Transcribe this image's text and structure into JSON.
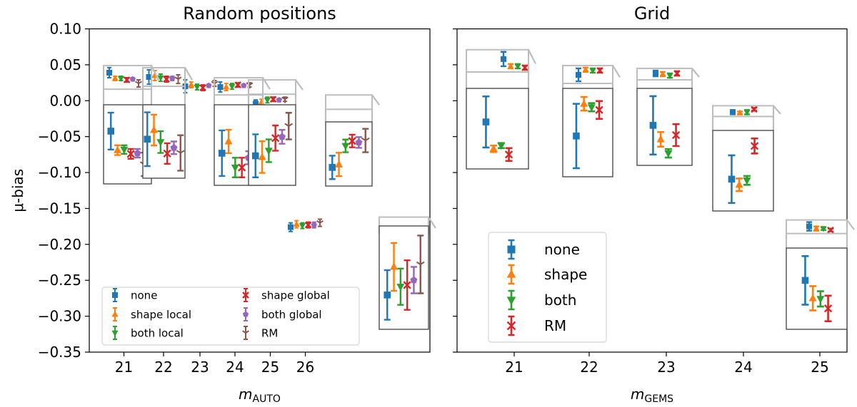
{
  "chart_data": [
    {
      "type": "errorbar",
      "title": "Random positions",
      "ylabel": "μ-bias",
      "xlabel": "m",
      "xlabel_sub": "AUTO",
      "ylim": [
        -0.35,
        0.1
      ],
      "yticks": [
        "0.10",
        "0.05",
        "0.00",
        "−0.05",
        "−0.10",
        "−0.15",
        "−0.20",
        "−0.25",
        "−0.30",
        "−0.35"
      ],
      "ytick_values": [
        0.1,
        0.05,
        0.0,
        -0.05,
        -0.1,
        -0.15,
        -0.2,
        -0.25,
        -0.3,
        -0.35
      ],
      "categories": [
        "21",
        "22",
        "23",
        "24",
        "25",
        "26"
      ],
      "legend_location": "lower-left",
      "series": [
        {
          "name": "none",
          "color": "#1f77b4",
          "marker": "square",
          "values": [
            0.039,
            0.033,
            0.02,
            0.019,
            -0.004,
            -0.176
          ],
          "errors": [
            0.007,
            0.01,
            0.009,
            0.007,
            0.005,
            0.006
          ]
        },
        {
          "name": "shape local",
          "color": "#ff7f0e",
          "marker": "triangle-up",
          "values": [
            0.031,
            0.035,
            0.022,
            0.019,
            -0.002,
            -0.172
          ],
          "errors": [
            0.003,
            0.007,
            0.004,
            0.005,
            0.004,
            0.005
          ]
        },
        {
          "name": "both local",
          "color": "#2ca02c",
          "marker": "triangle-down",
          "values": [
            0.031,
            0.032,
            0.019,
            0.02,
            0.001,
            -0.174
          ],
          "errors": [
            0.003,
            0.005,
            0.004,
            0.004,
            0.004,
            0.004
          ]
        },
        {
          "name": "shape global",
          "color": "#d62728",
          "marker": "x",
          "values": [
            0.029,
            0.03,
            0.018,
            0.022,
            0.002,
            -0.173
          ],
          "errors": [
            0.003,
            0.004,
            0.004,
            0.003,
            0.003,
            0.004
          ]
        },
        {
          "name": "both global",
          "color": "#9467bd",
          "marker": "pentagon",
          "values": [
            0.03,
            0.031,
            0.021,
            0.021,
            0.001,
            -0.173
          ],
          "errors": [
            0.002,
            0.003,
            0.002,
            0.002,
            0.002,
            0.004
          ]
        },
        {
          "name": "RM",
          "color": "#8c564b",
          "marker": "tri-down",
          "values": [
            0.024,
            0.03,
            0.024,
            0.022,
            0.002,
            -0.17
          ],
          "errors": [
            0.005,
            0.006,
            0.004,
            0.003,
            0.003,
            0.005
          ]
        }
      ],
      "insets": [
        {
          "category": "21",
          "values": [
            -0.039,
            -0.07,
            -0.069,
            -0.076,
            -0.075,
            -0.093
          ],
          "errors": [
            0.03,
            0.008,
            0.007,
            0.008,
            0.007,
            0.019
          ]
        },
        {
          "category": "22",
          "values": [
            -0.048,
            -0.032,
            -0.053,
            -0.073,
            -0.063,
            -0.072
          ],
          "errors": [
            0.047,
            0.027,
            0.019,
            0.018,
            0.011,
            0.031
          ]
        },
        {
          "category": "23",
          "values": [
            -0.073,
            -0.055,
            -0.095,
            -0.095,
            -0.08,
            -0.035
          ],
          "errors": [
            0.035,
            0.018,
            0.015,
            0.015,
            0.01,
            0.024
          ]
        },
        {
          "category": "24",
          "values": [
            -0.081,
            -0.083,
            -0.073,
            -0.053,
            -0.051,
            -0.034
          ],
          "errors": [
            0.034,
            0.025,
            0.018,
            0.02,
            0.011,
            0.021
          ]
        },
        {
          "category": "25",
          "values": [
            -0.114,
            -0.108,
            -0.07,
            -0.06,
            -0.063,
            -0.059
          ],
          "errors": [
            0.024,
            0.024,
            0.013,
            0.013,
            0.011,
            0.024
          ]
        },
        {
          "category": "26",
          "values": [
            -0.282,
            -0.248,
            -0.272,
            -0.27,
            -0.264,
            -0.245
          ],
          "errors": [
            0.03,
            0.029,
            0.022,
            0.03,
            0.016,
            0.035
          ]
        }
      ]
    },
    {
      "type": "errorbar",
      "title": "Grid",
      "xlabel": "m",
      "xlabel_sub": "GEMS",
      "ylim": [
        -0.35,
        0.1
      ],
      "categories": [
        "21",
        "22",
        "23",
        "24",
        "25"
      ],
      "legend_location": "lower-left",
      "series": [
        {
          "name": "none",
          "color": "#1f77b4",
          "marker": "square",
          "values": [
            0.058,
            0.036,
            0.038,
            -0.016,
            -0.175
          ],
          "errors": [
            0.01,
            0.009,
            0.004,
            0.003,
            0.006
          ]
        },
        {
          "name": "shape",
          "color": "#ff7f0e",
          "marker": "triangle-up",
          "values": [
            0.048,
            0.043,
            0.037,
            -0.017,
            -0.178
          ],
          "errors": [
            0.003,
            0.003,
            0.003,
            0.002,
            0.003
          ]
        },
        {
          "name": "both",
          "color": "#2ca02c",
          "marker": "triangle-down",
          "values": [
            0.048,
            0.042,
            0.035,
            -0.016,
            -0.178
          ],
          "errors": [
            0.003,
            0.003,
            0.003,
            0.003,
            0.002
          ]
        },
        {
          "name": "RM",
          "color": "#d62728",
          "marker": "x",
          "values": [
            0.046,
            0.042,
            0.038,
            -0.012,
            -0.18
          ],
          "errors": [
            0.003,
            0.003,
            0.003,
            0.002,
            0.002
          ]
        }
      ],
      "insets": [
        {
          "category": "21",
          "values": [
            -0.027,
            -0.069,
            -0.064,
            -0.078
          ],
          "errors": [
            0.04,
            0.005,
            0.004,
            0.01
          ]
        },
        {
          "category": "22",
          "values": [
            -0.055,
            -0.008,
            -0.013,
            -0.017
          ],
          "errors": [
            0.047,
            0.01,
            0.006,
            0.013
          ]
        },
        {
          "category": "23",
          "values": [
            -0.042,
            -0.065,
            -0.088,
            -0.058
          ],
          "errors": [
            0.048,
            0.012,
            0.007,
            0.018
          ]
        },
        {
          "category": "24",
          "values": [
            -0.113,
            -0.122,
            -0.115,
            -0.06
          ],
          "errors": [
            0.038,
            0.01,
            0.007,
            0.012
          ]
        },
        {
          "category": "25",
          "values": [
            -0.25,
            -0.278,
            -0.279,
            -0.294
          ],
          "errors": [
            0.038,
            0.019,
            0.012,
            0.02
          ]
        }
      ]
    }
  ]
}
